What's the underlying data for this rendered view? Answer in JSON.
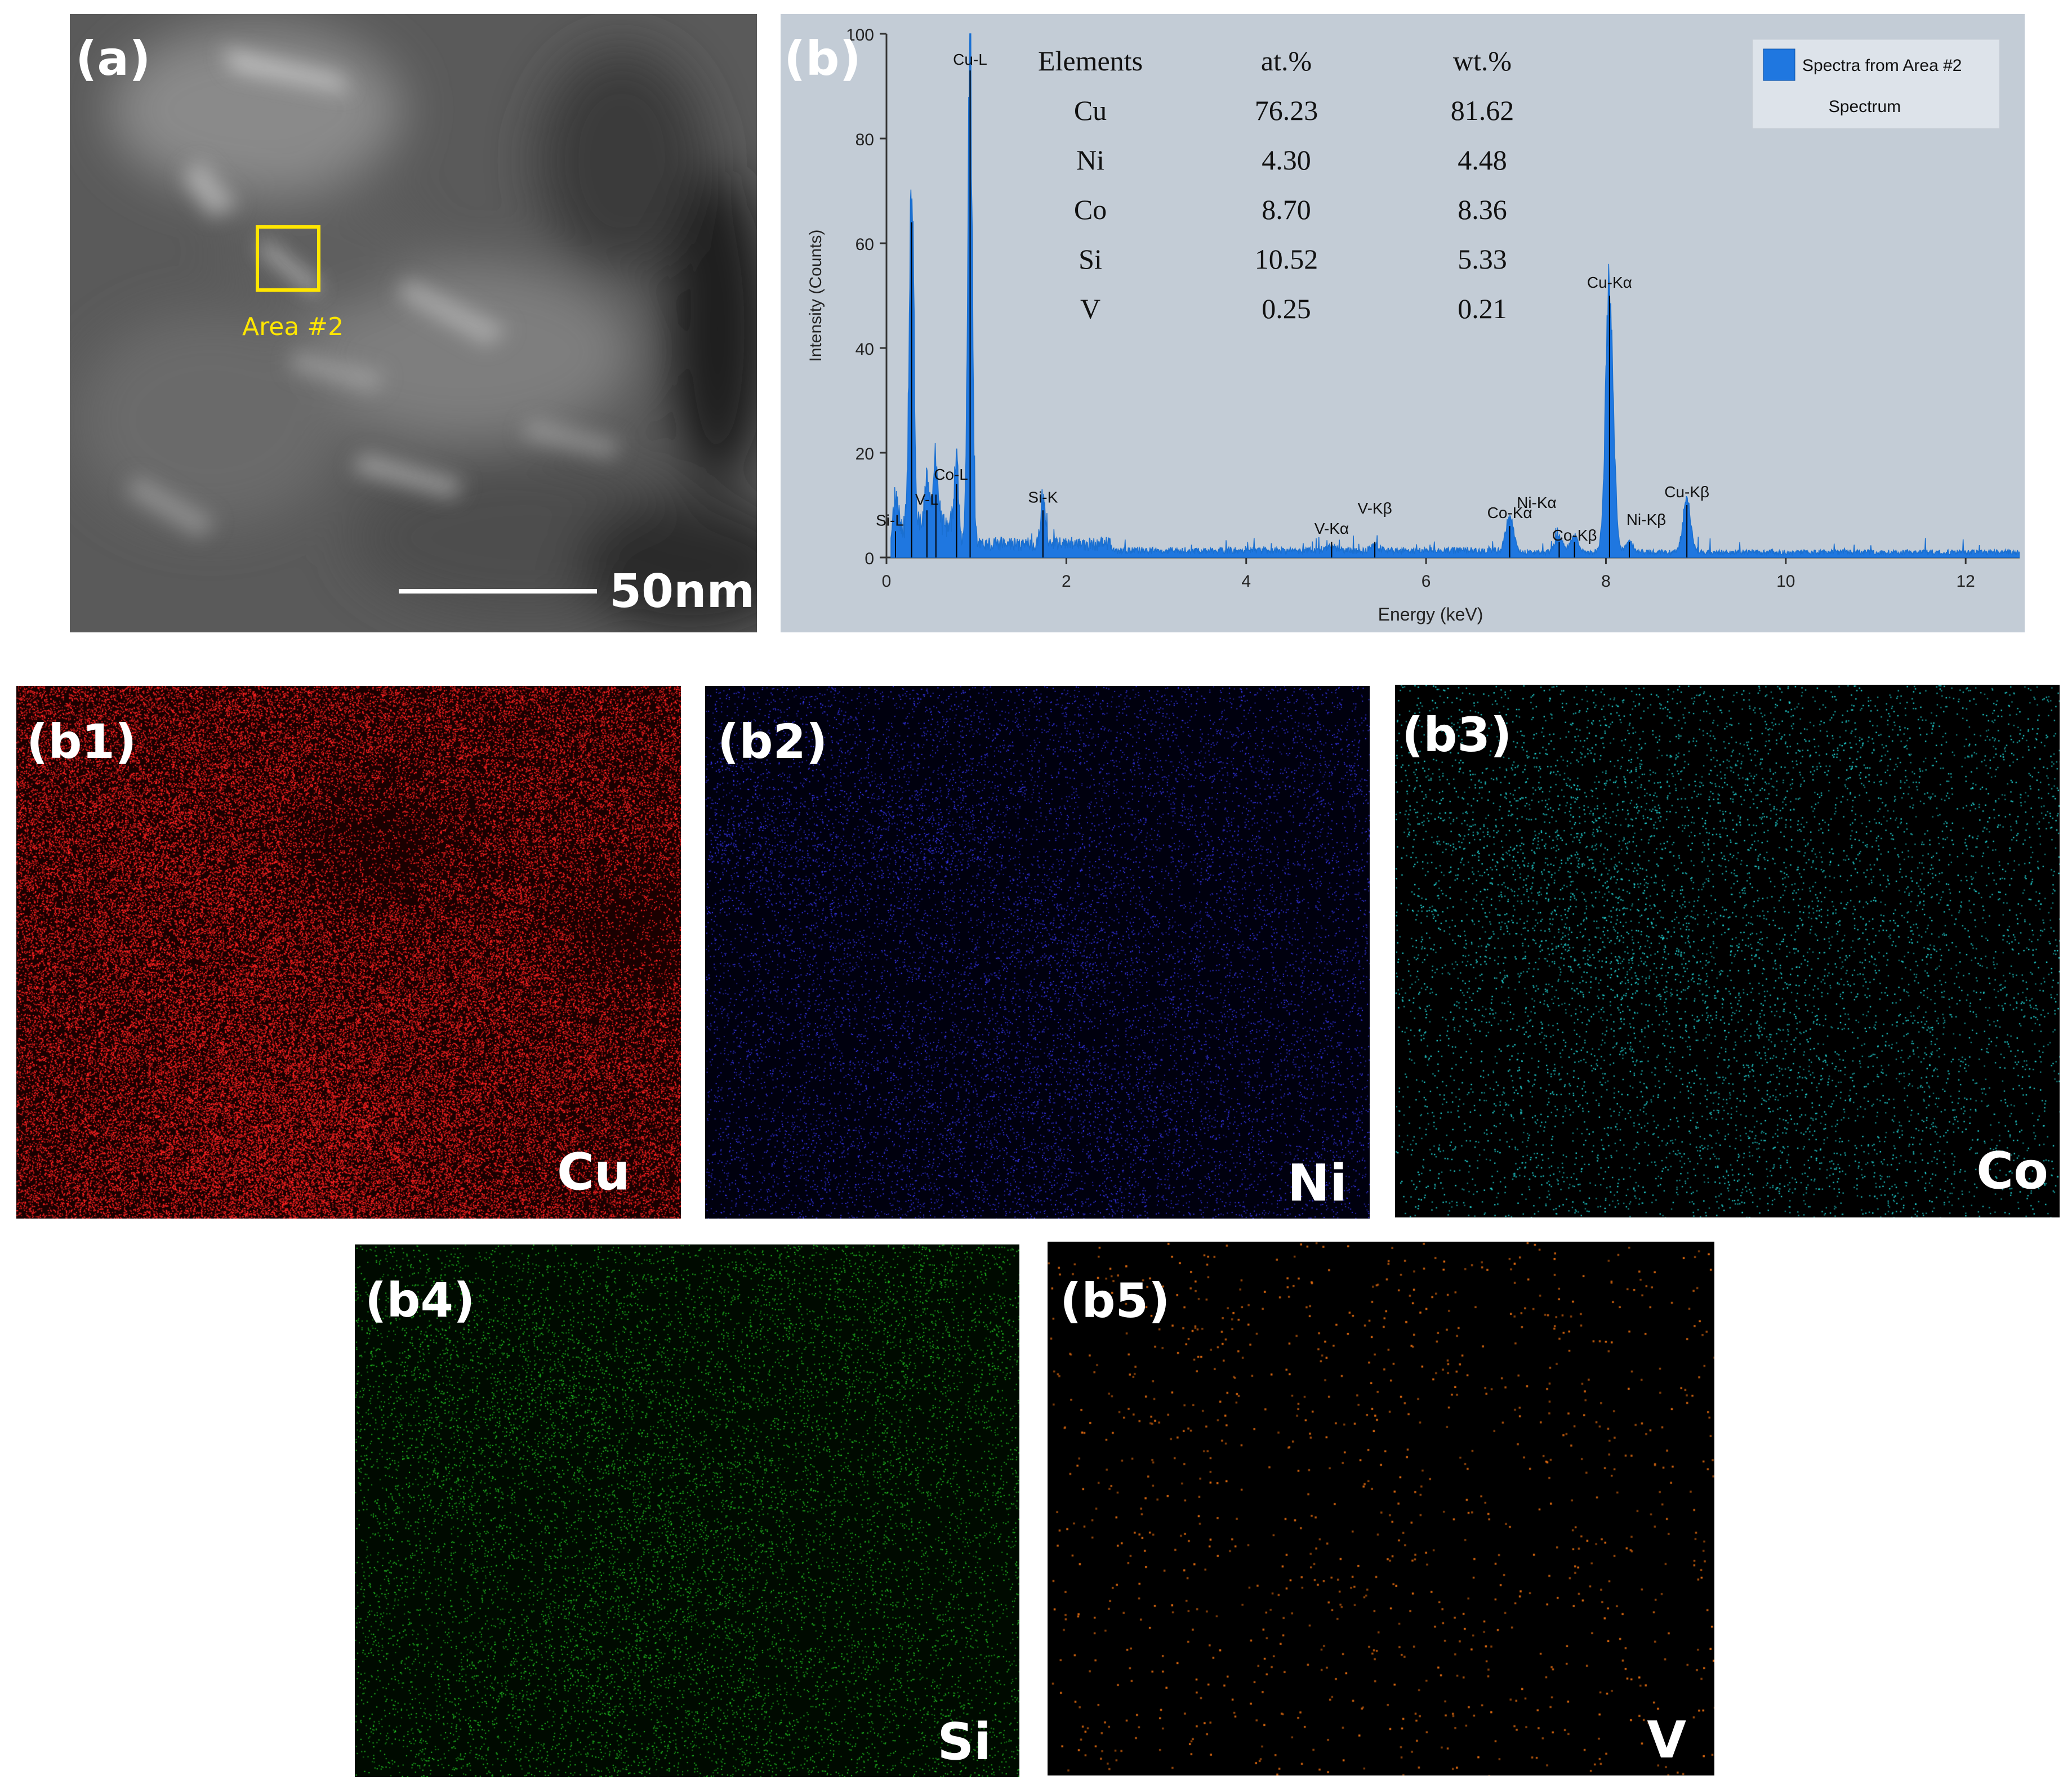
{
  "panel_a": {
    "label": "(a)",
    "area_label": "Area #2",
    "scale_bar_label": "50nm"
  },
  "panel_b": {
    "label": "(b)",
    "table": {
      "headers": [
        "Elements",
        "at.%",
        "wt.%"
      ],
      "rows": [
        [
          "Cu",
          "76.23",
          "81.62"
        ],
        [
          "Ni",
          "4.30",
          "4.48"
        ],
        [
          "Co",
          "8.70",
          "8.36"
        ],
        [
          "Si",
          "10.52",
          "5.33"
        ],
        [
          "V",
          "0.25",
          "0.21"
        ]
      ]
    }
  },
  "chart_data": {
    "type": "area",
    "xlabel": "Energy (keV)",
    "ylabel": "Intensity (Counts)",
    "xlim": [
      0,
      12.6
    ],
    "ylim": [
      0,
      100
    ],
    "xticks": [
      0,
      2,
      4,
      6,
      8,
      10,
      12
    ],
    "yticks": [
      0,
      20,
      40,
      60,
      80,
      100
    ],
    "legend": {
      "entry": "Spectra from Area #2",
      "subtitle": "Spectrum",
      "placement": "top-right",
      "color": "#1f77e0"
    },
    "peaks": [
      {
        "energy": 0.1,
        "counts": 5,
        "label": "Si-L"
      },
      {
        "energy": 0.28,
        "counts": 64,
        "label": ""
      },
      {
        "energy": 0.45,
        "counts": 9,
        "label": "V-L"
      },
      {
        "energy": 0.55,
        "counts": 12,
        "label": ""
      },
      {
        "energy": 0.78,
        "counts": 14,
        "label": "Co-L"
      },
      {
        "energy": 0.93,
        "counts": 93,
        "label": "Cu-L"
      },
      {
        "energy": 1.74,
        "counts": 9,
        "label": "Si-K"
      },
      {
        "energy": 4.95,
        "counts": 1,
        "label": "V-Kα"
      },
      {
        "energy": 5.43,
        "counts": 1,
        "label": "V-Kβ"
      },
      {
        "energy": 6.93,
        "counts": 6,
        "label": "Co-Kα"
      },
      {
        "energy": 7.48,
        "counts": 3,
        "label": "Ni-Kα"
      },
      {
        "energy": 7.65,
        "counts": 3,
        "label": "Co-Kβ"
      },
      {
        "energy": 8.04,
        "counts": 50,
        "label": "Cu-Kα"
      },
      {
        "energy": 8.26,
        "counts": 2,
        "label": "Ni-Kβ"
      },
      {
        "energy": 8.9,
        "counts": 10,
        "label": "Cu-Kβ"
      }
    ]
  },
  "maps": [
    {
      "id": "b1",
      "label": "(b1)",
      "element": "Cu",
      "color": "#ff2222"
    },
    {
      "id": "b2",
      "label": "(b2)",
      "element": "Ni",
      "color": "#3a3aff"
    },
    {
      "id": "b3",
      "label": "(b3)",
      "element": "Co",
      "color": "#22d6d6"
    },
    {
      "id": "b4",
      "label": "(b4)",
      "element": "Si",
      "color": "#22c022"
    },
    {
      "id": "b5",
      "label": "(b5)",
      "element": "V",
      "color": "#e06a10"
    }
  ]
}
